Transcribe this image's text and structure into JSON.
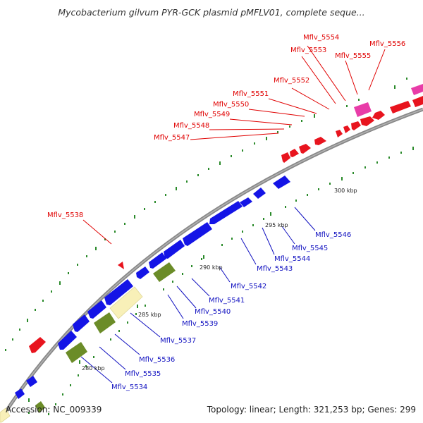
{
  "title": "Mycobacterium gilvum PYR-GCK plasmid pMFLV01, complete seque...",
  "footer": {
    "accession": "Accession: NC_009339",
    "summary": "Topology: linear; Length: 321,253 bp; Genes: 299"
  },
  "colors": {
    "forward_strand": "#e8141e",
    "reverse_strand": "#1414e6",
    "rna": "#e83ca8",
    "pseudo": "#f8f0b8",
    "other": "#6b8c28",
    "backbone": "#888888",
    "red_label": "#e00000",
    "blue_label": "#1010c0"
  },
  "kbp_labels": [
    "300 kbp",
    "295 kbp",
    "290 kbp",
    "285 kbp",
    "280 kbp"
  ],
  "red_genes": [
    "Mflv_5554",
    "Mflv_5553",
    "Mflv_5555",
    "Mflv_5556",
    "Mflv_5552",
    "Mflv_5551",
    "Mflv_5550",
    "Mflv_5549",
    "Mflv_5548",
    "Mflv_5547",
    "Mflv_5538"
  ],
  "blue_genes": [
    "Mflv_5546",
    "Mflv_5545",
    "Mflv_5544",
    "Mflv_5543",
    "Mflv_5542",
    "Mflv_5541",
    "Mflv_5540",
    "Mflv_5539",
    "Mflv_5537",
    "Mflv_5536",
    "Mflv_5535",
    "Mflv_5534"
  ]
}
